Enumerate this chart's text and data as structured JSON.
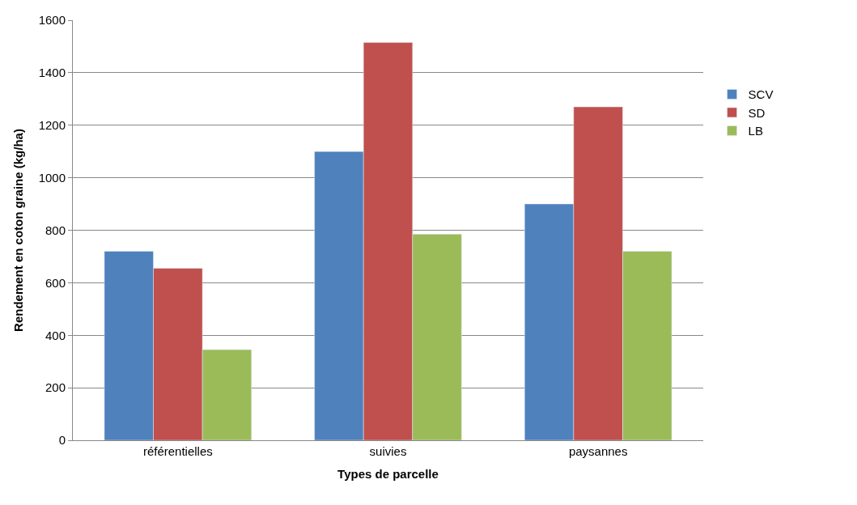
{
  "chart_data": {
    "type": "bar",
    "xlabel": "Types de parcelle",
    "ylabel": "Rendement en coton graine (kg/ha)",
    "categories": [
      "référentielles",
      "suivies",
      "paysannes"
    ],
    "series": [
      {
        "name": "SCV",
        "color": "#4f81bd",
        "values": [
          720,
          1100,
          900
        ]
      },
      {
        "name": "SD",
        "color": "#c0504d",
        "values": [
          655,
          1515,
          1270
        ]
      },
      {
        "name": "LB",
        "color": "#9bbb59",
        "values": [
          345,
          785,
          720
        ]
      }
    ],
    "ylim": [
      0,
      1600
    ],
    "yticks": [
      0,
      200,
      400,
      600,
      800,
      1000,
      1200,
      1400,
      1600
    ],
    "grid": "y",
    "legend": "right"
  }
}
